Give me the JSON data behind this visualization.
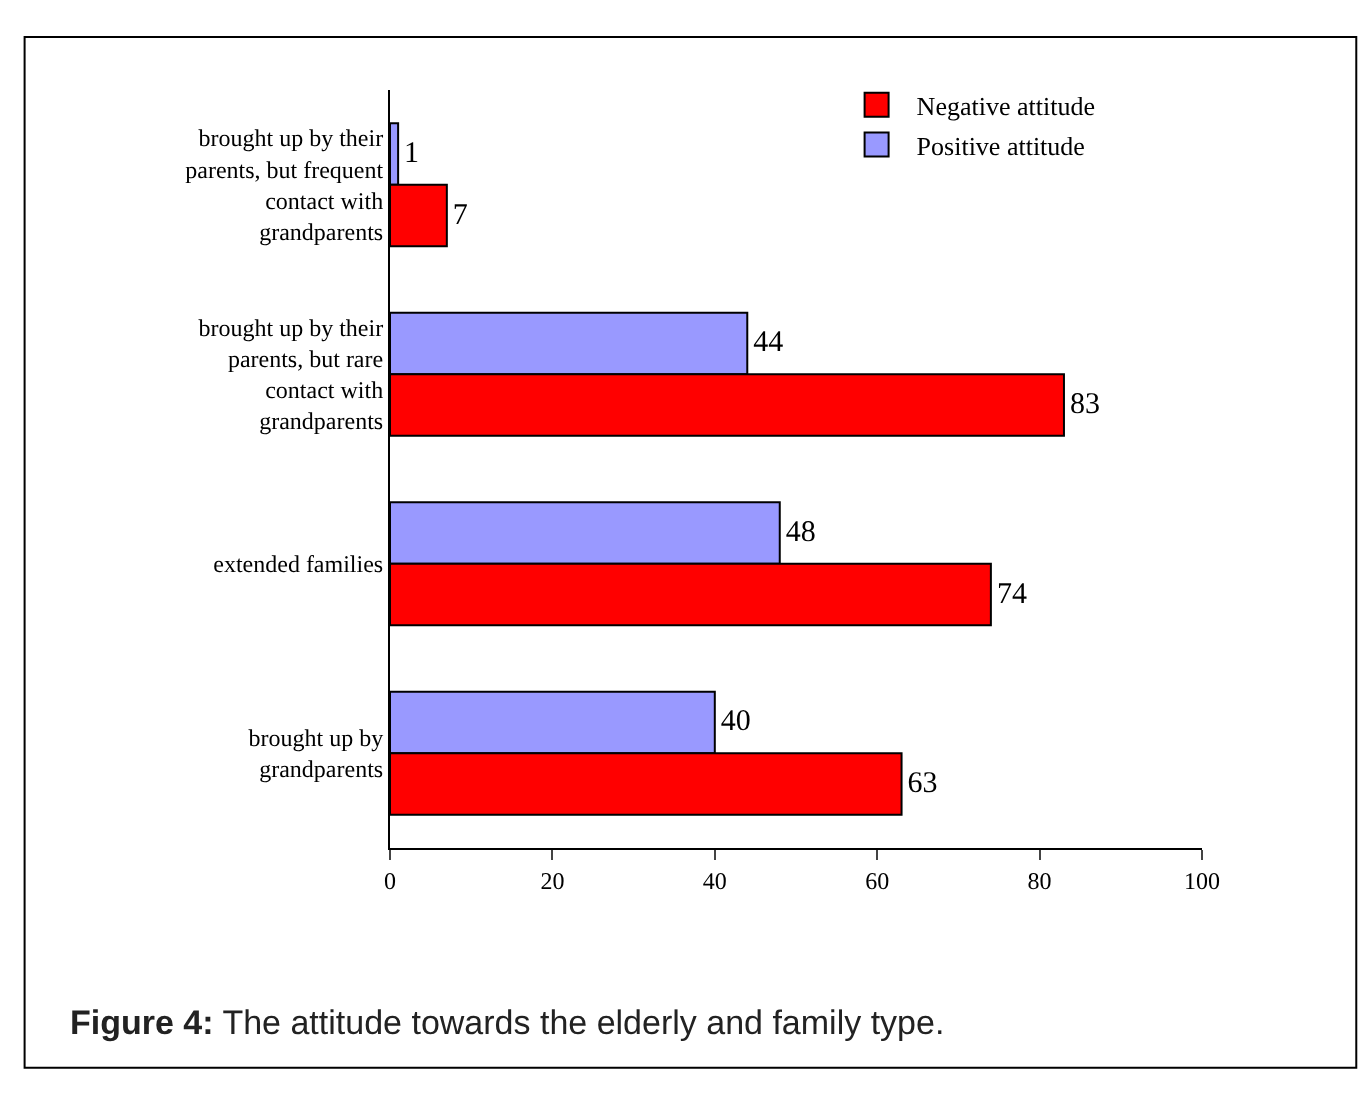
{
  "chart_data": {
    "type": "bar",
    "orientation": "horizontal",
    "categories": [
      "brought up by their parents, but frequent contact with grandparents",
      "brought up by their parents, but rare contact with grandparents",
      "extended families",
      "brought up by grandparents"
    ],
    "series": [
      {
        "name": "Negative attitude",
        "color": "#ff0000",
        "values": [
          7,
          83,
          74,
          63
        ]
      },
      {
        "name": "Positive attitude",
        "color": "#9999ff",
        "values": [
          1,
          44,
          48,
          40
        ]
      }
    ],
    "xlim": [
      0,
      100
    ],
    "xticks": [
      0,
      20,
      40,
      60,
      80,
      100
    ],
    "grid": false,
    "legend": "top right",
    "data_labels": true,
    "annotations": [
      "Figure 4: The attitude towards the elderly and family type."
    ]
  }
}
